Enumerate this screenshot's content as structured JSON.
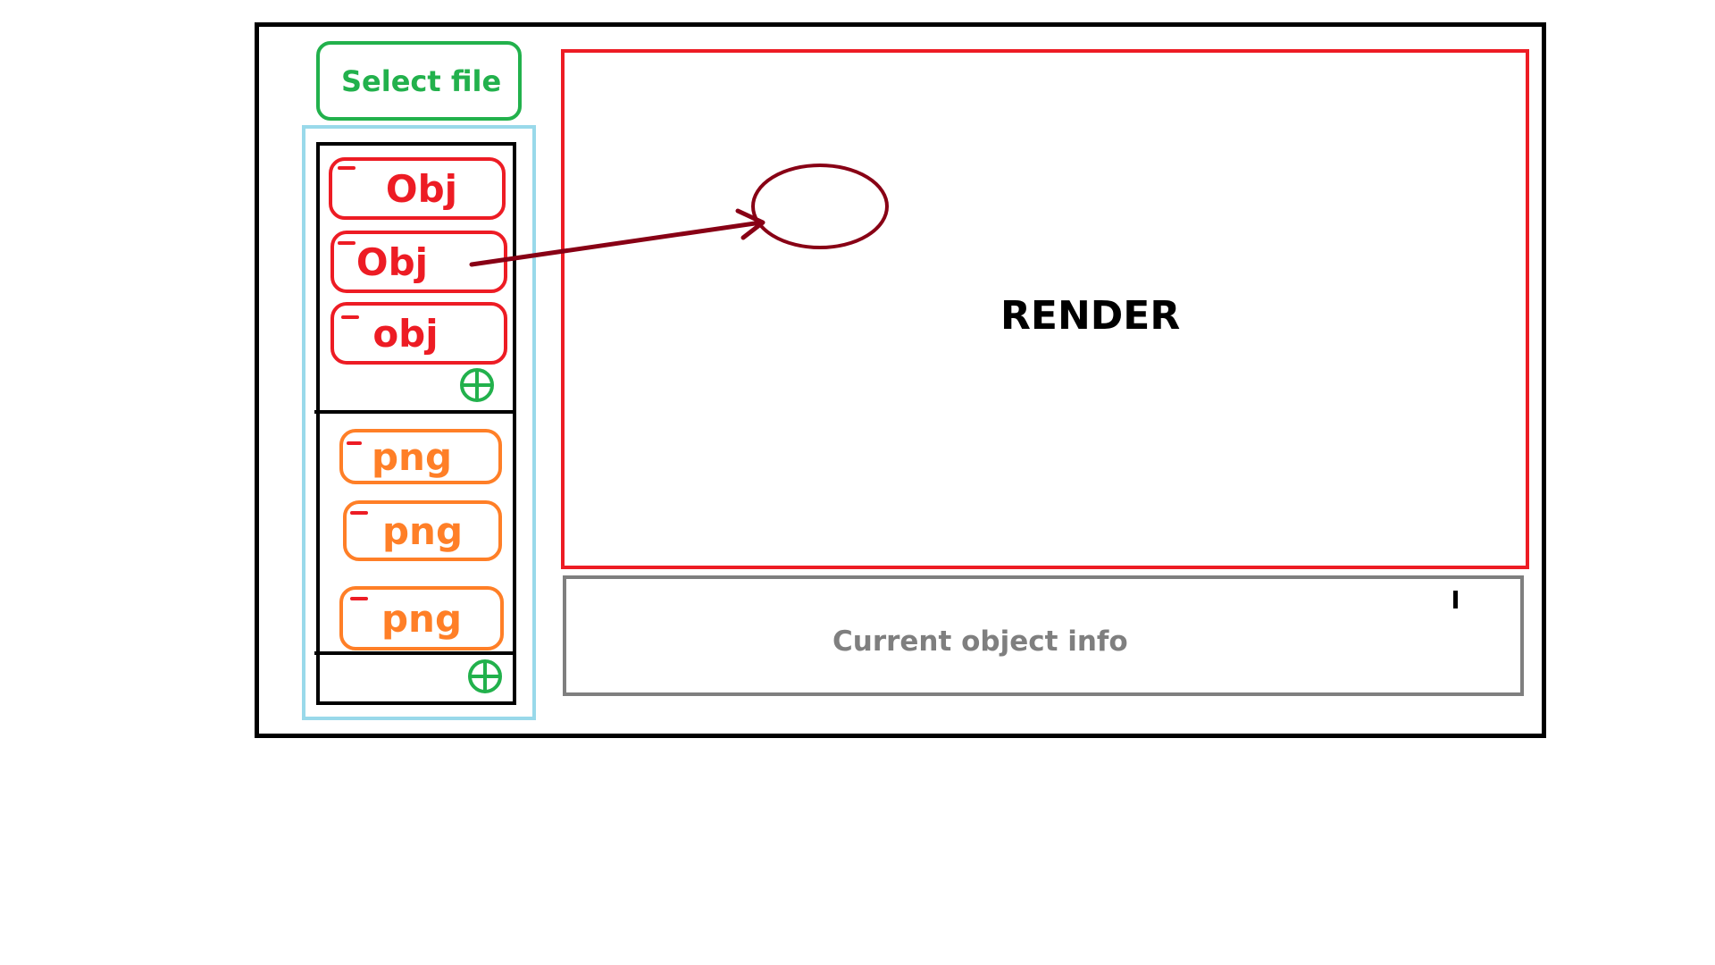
{
  "toolbar": {
    "select_file_label": "Select file"
  },
  "sidebar": {
    "obj_items": [
      {
        "label": "Obj"
      },
      {
        "label": "Obj"
      },
      {
        "label": "obj"
      }
    ],
    "png_items": [
      {
        "label": "png"
      },
      {
        "label": "png"
      },
      {
        "label": "png"
      }
    ]
  },
  "render": {
    "label": "RENDER"
  },
  "info": {
    "label": "Current object info"
  },
  "colors": {
    "select_button": "#22b14c",
    "obj_item": "#ed1c24",
    "png_item": "#ff7f27",
    "sidebar_border": "#99d9ea",
    "render_border": "#ed1c24",
    "info_border": "#7f7f7f",
    "arrow": "#880015"
  },
  "icons": {
    "add": "plus-circle-icon",
    "remove": "minus-icon"
  }
}
